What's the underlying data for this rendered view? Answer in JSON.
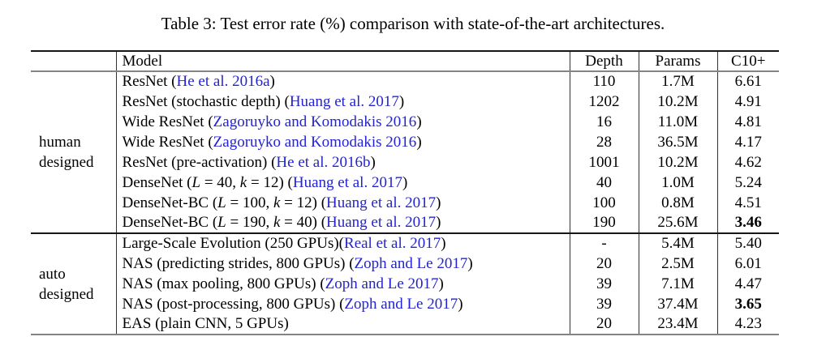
{
  "caption": "Table 3: Test error rate (%) comparison with state-of-the-art architectures.",
  "table": {
    "columns": {
      "model": "Model",
      "depth": "Depth",
      "params": "Params",
      "c10": "C10+"
    },
    "colors": {
      "citation_blue": "#2323d2",
      "rule_dark": "#161616",
      "rule_gray": "#848484",
      "cell_line": "#333333",
      "text": "#000000",
      "background": "#ffffff"
    },
    "groups": [
      {
        "label_lines": [
          "human",
          "designed"
        ],
        "rows": [
          {
            "model": [
              {
                "t": "ResNet ("
              },
              {
                "t": "He et al. 2016a",
                "c": true
              },
              {
                "t": ")"
              }
            ],
            "depth": "110",
            "params": "1.7M",
            "c10": "6.61",
            "c10_bold": false
          },
          {
            "model": [
              {
                "t": "ResNet (stochastic depth) ("
              },
              {
                "t": "Huang et al. 2017",
                "c": true
              },
              {
                "t": ")"
              }
            ],
            "depth": "1202",
            "params": "10.2M",
            "c10": "4.91",
            "c10_bold": false
          },
          {
            "model": [
              {
                "t": "Wide ResNet ("
              },
              {
                "t": "Zagoruyko and Komodakis 2016",
                "c": true
              },
              {
                "t": ")"
              }
            ],
            "depth": "16",
            "params": "11.0M",
            "c10": "4.81",
            "c10_bold": false
          },
          {
            "model": [
              {
                "t": "Wide ResNet ("
              },
              {
                "t": "Zagoruyko and Komodakis 2016",
                "c": true
              },
              {
                "t": ")"
              }
            ],
            "depth": "28",
            "params": "36.5M",
            "c10": "4.17",
            "c10_bold": false
          },
          {
            "model": [
              {
                "t": "ResNet (pre-activation) ("
              },
              {
                "t": "He et al. 2016b",
                "c": true
              },
              {
                "t": ")"
              }
            ],
            "depth": "1001",
            "params": "10.2M",
            "c10": "4.62",
            "c10_bold": false
          },
          {
            "model": [
              {
                "t": "DenseNet ("
              },
              {
                "t": "L",
                "i": true
              },
              {
                "t": " = 40, "
              },
              {
                "t": "k",
                "i": true
              },
              {
                "t": " = 12) ("
              },
              {
                "t": "Huang et al. 2017",
                "c": true
              },
              {
                "t": ")"
              }
            ],
            "depth": "40",
            "params": "1.0M",
            "c10": "5.24",
            "c10_bold": false
          },
          {
            "model": [
              {
                "t": "DenseNet-BC ("
              },
              {
                "t": "L",
                "i": true
              },
              {
                "t": " = 100, "
              },
              {
                "t": "k",
                "i": true
              },
              {
                "t": " = 12) ("
              },
              {
                "t": "Huang et al. 2017",
                "c": true
              },
              {
                "t": ")"
              }
            ],
            "depth": "100",
            "params": "0.8M",
            "c10": "4.51",
            "c10_bold": false
          },
          {
            "model": [
              {
                "t": "DenseNet-BC ("
              },
              {
                "t": "L",
                "i": true
              },
              {
                "t": " = 190, "
              },
              {
                "t": "k",
                "i": true
              },
              {
                "t": " = 40) ("
              },
              {
                "t": "Huang et al. 2017",
                "c": true
              },
              {
                "t": ")"
              }
            ],
            "depth": "190",
            "params": "25.6M",
            "c10": "3.46",
            "c10_bold": true
          }
        ]
      },
      {
        "label_lines": [
          "auto",
          "designed"
        ],
        "rows": [
          {
            "model": [
              {
                "t": "Large-Scale Evolution (250 GPUs)("
              },
              {
                "t": "Real et al. 2017",
                "c": true
              },
              {
                "t": ")"
              }
            ],
            "depth": "-",
            "params": "5.4M",
            "c10": "5.40",
            "c10_bold": false
          },
          {
            "model": [
              {
                "t": "NAS (predicting strides, 800 GPUs) ("
              },
              {
                "t": "Zoph and Le 2017",
                "c": true
              },
              {
                "t": ")"
              }
            ],
            "depth": "20",
            "params": "2.5M",
            "c10": "6.01",
            "c10_bold": false
          },
          {
            "model": [
              {
                "t": "NAS (max pooling, 800 GPUs) ("
              },
              {
                "t": "Zoph and Le 2017",
                "c": true
              },
              {
                "t": ")"
              }
            ],
            "depth": "39",
            "params": "7.1M",
            "c10": "4.47",
            "c10_bold": false
          },
          {
            "model": [
              {
                "t": "NAS (post-processing, 800 GPUs) ("
              },
              {
                "t": "Zoph and Le 2017",
                "c": true
              },
              {
                "t": ")"
              }
            ],
            "depth": "39",
            "params": "37.4M",
            "c10": "3.65",
            "c10_bold": true
          },
          {
            "model": [
              {
                "t": "EAS (plain CNN, 5 GPUs)"
              }
            ],
            "depth": "20",
            "params": "23.4M",
            "c10": "4.23",
            "c10_bold": false
          }
        ]
      }
    ]
  }
}
